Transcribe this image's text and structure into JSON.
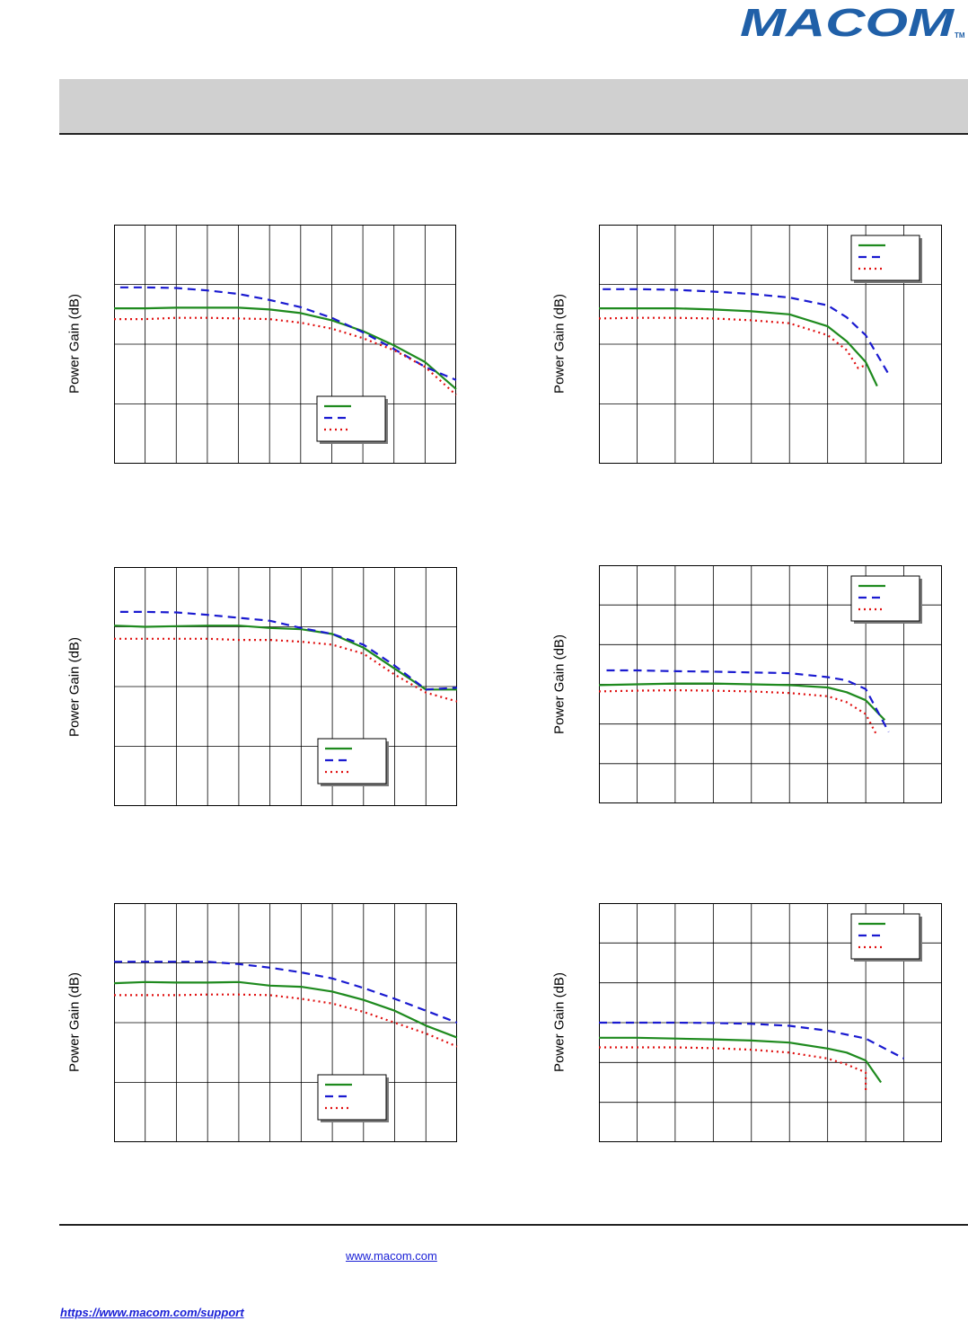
{
  "brand": {
    "name": "MACOM",
    "trademark": "TM",
    "color": "#2060a8"
  },
  "colors": {
    "series_solid": "#1e8a1e",
    "series_dashed": "#1a1ad0",
    "series_dotted": "#e01010",
    "grid": "#000000"
  },
  "footer": {
    "website": "www.macom.com",
    "support": "https://www.macom.com/support"
  },
  "chart_data": [
    {
      "type": "line",
      "ylabel": "Power Gain (dB)",
      "xlim": [
        0,
        11
      ],
      "ylim": [
        0,
        4
      ],
      "grid": true,
      "legend_position": "bottom-right",
      "series": [
        {
          "style": "solid",
          "x": [
            0,
            1,
            2,
            3,
            4,
            5,
            6,
            7,
            8,
            9,
            10,
            11
          ],
          "y": [
            2.6,
            2.6,
            2.61,
            2.61,
            2.61,
            2.58,
            2.52,
            2.4,
            2.22,
            1.98,
            1.7,
            1.25
          ]
        },
        {
          "style": "dashed",
          "x": [
            0.2,
            1,
            2,
            3,
            4,
            5,
            6,
            7,
            8,
            9,
            10,
            11
          ],
          "y": [
            2.95,
            2.95,
            2.94,
            2.9,
            2.84,
            2.74,
            2.62,
            2.44,
            2.2,
            1.92,
            1.62,
            1.4
          ]
        },
        {
          "style": "dotted",
          "x": [
            0,
            1,
            2,
            3,
            4,
            5,
            6,
            7,
            8,
            9,
            10,
            11
          ],
          "y": [
            2.42,
            2.42,
            2.44,
            2.44,
            2.43,
            2.42,
            2.36,
            2.26,
            2.1,
            1.9,
            1.62,
            1.15
          ]
        }
      ]
    },
    {
      "type": "line",
      "ylabel": "Power Gain (dB)",
      "xlim": [
        0,
        9
      ],
      "ylim": [
        0,
        4
      ],
      "grid": true,
      "legend_position": "top-right",
      "series": [
        {
          "style": "solid",
          "x": [
            0,
            1,
            2,
            3,
            4,
            5,
            6,
            6.5,
            7,
            7.3
          ],
          "y": [
            2.6,
            2.6,
            2.6,
            2.58,
            2.55,
            2.5,
            2.3,
            2.05,
            1.7,
            1.3
          ]
        },
        {
          "style": "dashed",
          "x": [
            0.1,
            1,
            2,
            3,
            4,
            5,
            6,
            6.5,
            7,
            7.6
          ],
          "y": [
            2.92,
            2.92,
            2.91,
            2.88,
            2.84,
            2.78,
            2.65,
            2.45,
            2.15,
            1.5
          ]
        },
        {
          "style": "dotted",
          "x": [
            0,
            1,
            2,
            3,
            4,
            5,
            6,
            6.5,
            6.8,
            7.0
          ],
          "y": [
            2.43,
            2.44,
            2.44,
            2.43,
            2.4,
            2.35,
            2.15,
            1.9,
            1.6,
            1.65
          ]
        }
      ]
    },
    {
      "type": "line",
      "ylabel": "Power Gain (dB)",
      "xlim": [
        0,
        11
      ],
      "ylim": [
        0,
        4
      ],
      "grid": true,
      "legend_position": "bottom-right",
      "series": [
        {
          "style": "solid",
          "x": [
            0,
            1,
            2,
            3,
            4,
            5,
            6,
            7,
            8,
            9,
            10,
            11
          ],
          "y": [
            3.02,
            3.0,
            3.01,
            3.02,
            3.02,
            2.98,
            2.96,
            2.88,
            2.65,
            2.3,
            1.95,
            1.95
          ]
        },
        {
          "style": "dashed",
          "x": [
            0.2,
            1,
            2,
            3,
            4,
            5,
            6,
            7,
            8,
            9,
            10,
            11
          ],
          "y": [
            3.25,
            3.25,
            3.24,
            3.2,
            3.15,
            3.1,
            2.98,
            2.88,
            2.7,
            2.35,
            1.95,
            1.98
          ]
        },
        {
          "style": "dotted",
          "x": [
            0,
            1,
            2,
            3,
            4,
            5,
            6,
            7,
            8,
            9,
            10,
            11
          ],
          "y": [
            2.8,
            2.8,
            2.8,
            2.8,
            2.78,
            2.78,
            2.75,
            2.7,
            2.55,
            2.2,
            1.9,
            1.75
          ]
        }
      ]
    },
    {
      "type": "line",
      "ylabel": "Power Gain (dB)",
      "xlim": [
        0,
        9
      ],
      "ylim": [
        0,
        6
      ],
      "grid": true,
      "legend_position": "top-right",
      "series": [
        {
          "style": "solid",
          "x": [
            0,
            1,
            2,
            3,
            4,
            5,
            6,
            6.5,
            7,
            7.5
          ],
          "y": [
            2.98,
            3.0,
            3.02,
            3.02,
            3.0,
            2.98,
            2.92,
            2.8,
            2.6,
            2.1
          ]
        },
        {
          "style": "dashed",
          "x": [
            0.2,
            1,
            2,
            3,
            4,
            5,
            6,
            6.5,
            7,
            7.6
          ],
          "y": [
            3.35,
            3.35,
            3.33,
            3.32,
            3.3,
            3.28,
            3.18,
            3.1,
            2.88,
            1.8
          ]
        },
        {
          "style": "dotted",
          "x": [
            0,
            1,
            2,
            3,
            4,
            5,
            6,
            6.5,
            7,
            7.3
          ],
          "y": [
            2.82,
            2.84,
            2.85,
            2.84,
            2.82,
            2.78,
            2.7,
            2.55,
            2.25,
            1.7
          ]
        }
      ]
    },
    {
      "type": "line",
      "ylabel": "Power Gain (dB)",
      "xlim": [
        0,
        11
      ],
      "ylim": [
        0,
        4
      ],
      "grid": true,
      "legend_position": "bottom-right",
      "series": [
        {
          "style": "solid",
          "x": [
            0,
            1,
            2,
            3,
            4,
            5,
            6,
            7,
            8,
            9,
            10,
            11
          ],
          "y": [
            2.66,
            2.68,
            2.67,
            2.67,
            2.68,
            2.62,
            2.6,
            2.52,
            2.38,
            2.2,
            1.95,
            1.75
          ]
        },
        {
          "style": "dashed",
          "x": [
            0,
            1,
            2,
            3,
            4,
            5,
            6,
            7,
            8,
            9,
            10,
            11
          ],
          "y": [
            3.02,
            3.02,
            3.02,
            3.02,
            2.98,
            2.92,
            2.84,
            2.74,
            2.58,
            2.4,
            2.2,
            2.0
          ]
        },
        {
          "style": "dotted",
          "x": [
            0,
            1,
            2,
            3,
            4,
            5,
            6,
            7,
            8,
            9,
            10,
            11
          ],
          "y": [
            2.46,
            2.46,
            2.46,
            2.47,
            2.47,
            2.46,
            2.4,
            2.32,
            2.18,
            2.0,
            1.82,
            1.6
          ]
        }
      ]
    },
    {
      "type": "line",
      "ylabel": "Power Gain (dB)",
      "xlim": [
        0,
        9
      ],
      "ylim": [
        0,
        6
      ],
      "grid": true,
      "legend_position": "top-right",
      "series": [
        {
          "style": "solid",
          "x": [
            0,
            1,
            2,
            3,
            4,
            5,
            6,
            6.5,
            7,
            7.4
          ],
          "y": [
            2.62,
            2.62,
            2.6,
            2.58,
            2.55,
            2.5,
            2.35,
            2.25,
            2.05,
            1.5
          ]
        },
        {
          "style": "dashed",
          "x": [
            0,
            1,
            2,
            3,
            4,
            5,
            6,
            7,
            7.5,
            8
          ],
          "y": [
            3.0,
            3.0,
            3.0,
            2.99,
            2.97,
            2.92,
            2.8,
            2.6,
            2.35,
            2.1
          ]
        },
        {
          "style": "dotted",
          "x": [
            0,
            1,
            2,
            3,
            4,
            5,
            6,
            6.5,
            7,
            7.0
          ],
          "y": [
            2.38,
            2.38,
            2.38,
            2.36,
            2.32,
            2.25,
            2.1,
            1.95,
            1.75,
            1.3
          ]
        }
      ]
    }
  ]
}
